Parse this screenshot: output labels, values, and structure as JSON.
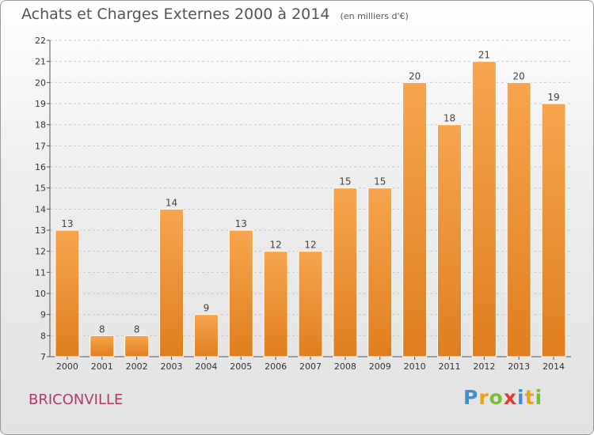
{
  "chart_data": {
    "type": "bar",
    "title": "Achats et Charges Externes 2000 à 2014",
    "subtitle": "(en milliers d'€)",
    "categories": [
      "2000",
      "2001",
      "2002",
      "2003",
      "2004",
      "2005",
      "2006",
      "2007",
      "2008",
      "2009",
      "2010",
      "2011",
      "2012",
      "2013",
      "2014"
    ],
    "values": [
      13,
      8,
      8,
      14,
      9,
      13,
      12,
      12,
      15,
      15,
      20,
      18,
      21,
      20,
      19
    ],
    "ylim": [
      7,
      22
    ],
    "yticks": [
      7,
      8,
      9,
      10,
      11,
      12,
      13,
      14,
      15,
      16,
      17,
      18,
      19,
      20,
      21,
      22
    ],
    "grid": true,
    "bar_color": "#f08c2c"
  },
  "footer": {
    "town": "BRICONVILLE",
    "logo": [
      "P",
      "r",
      "o",
      "x",
      "i",
      "t",
      "i"
    ],
    "logo_colors": [
      "#3d8fd6",
      "#e8a21e",
      "#7bbd34",
      "#e33b2f",
      "#3d8fd6",
      "#e8a21e",
      "#7bbd34"
    ]
  }
}
